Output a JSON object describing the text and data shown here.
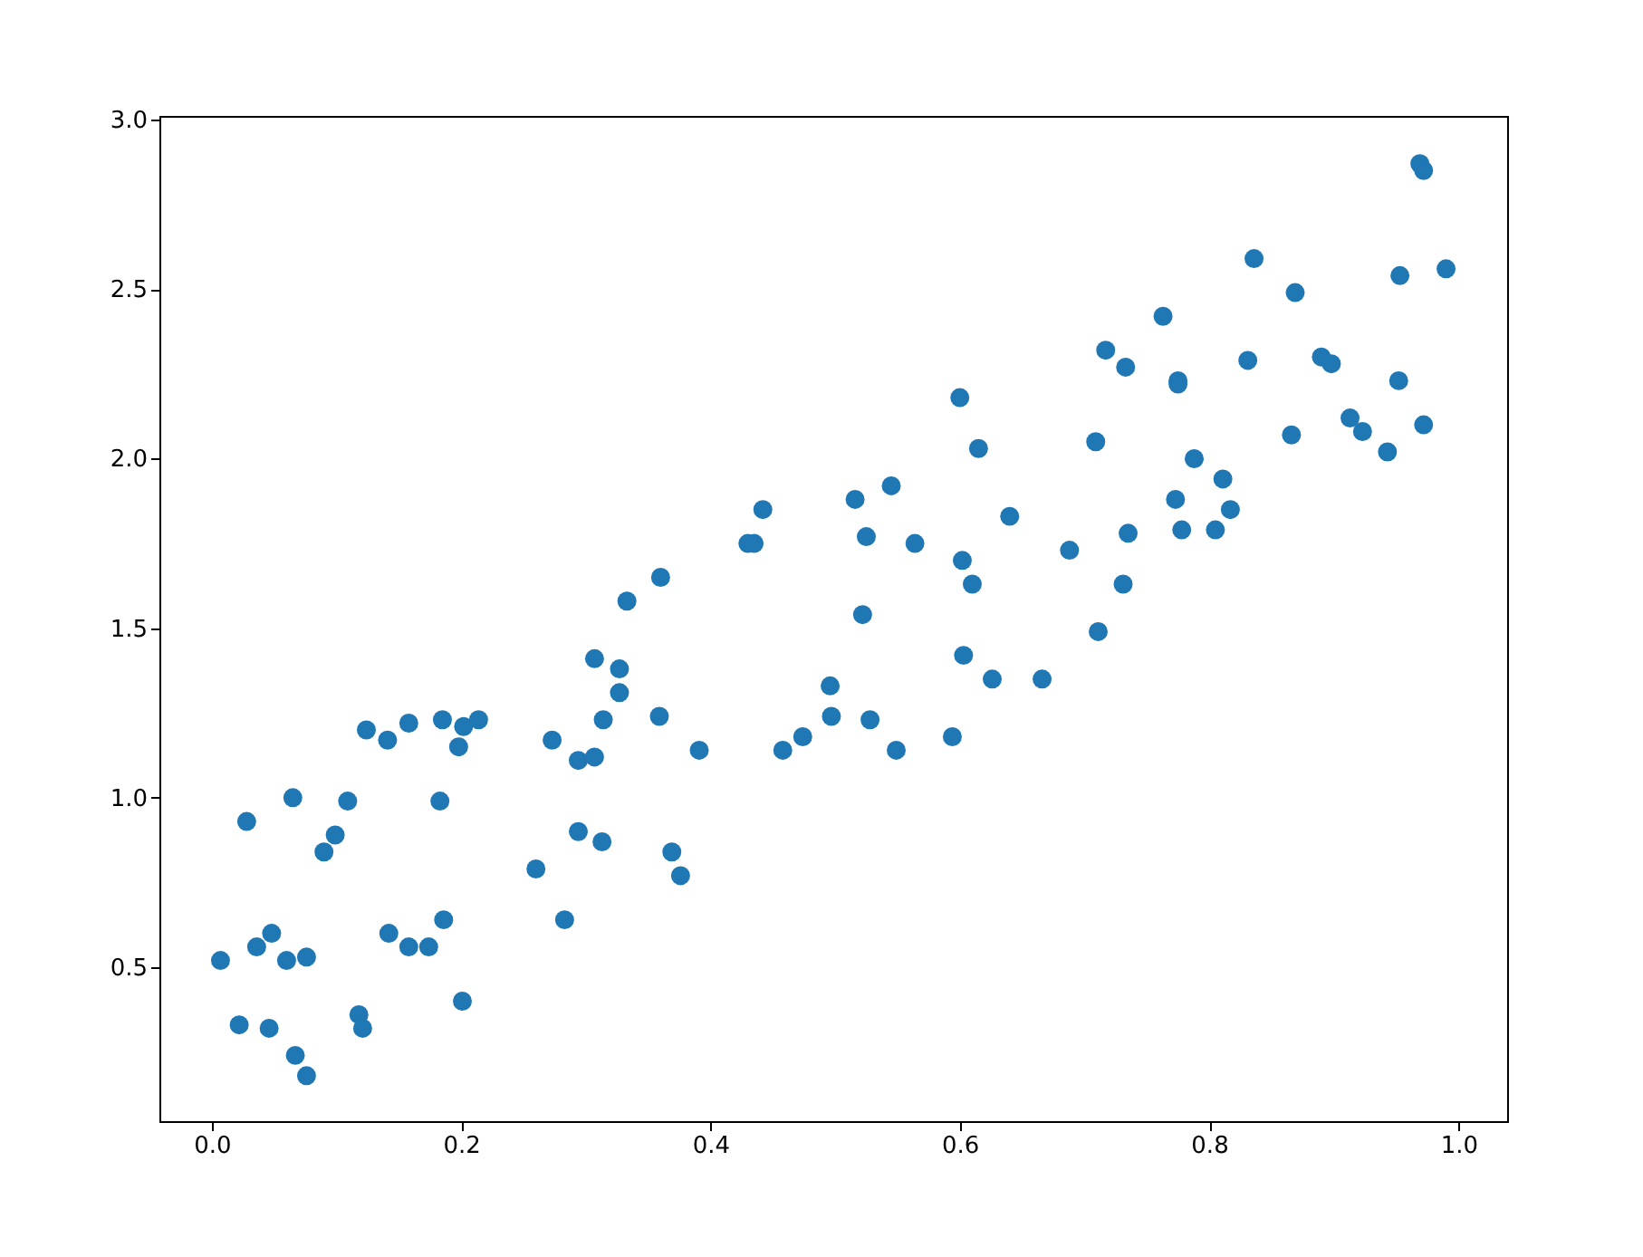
{
  "chart_data": {
    "type": "scatter",
    "color": "#1f77b4",
    "marker": "circle",
    "grid": false,
    "xlim": [
      -0.042,
      1.039
    ],
    "ylim": [
      0.046,
      3.011
    ],
    "xticks": [
      {
        "value": 0,
        "label": "0.0"
      },
      {
        "value": 0.2,
        "label": "0.2"
      },
      {
        "value": 0.4,
        "label": "0.4"
      },
      {
        "value": 0.6,
        "label": "0.6"
      },
      {
        "value": 0.8,
        "label": "0.8"
      },
      {
        "value": 1,
        "label": "1.0"
      }
    ],
    "yticks": [
      0.5,
      {
        "value": 1,
        "label": "1.0"
      },
      1.5,
      {
        "value": 2,
        "label": "2.0"
      },
      2.5,
      {
        "value": 3,
        "label": "3.0"
      }
    ],
    "x": [
      0.007,
      0.022,
      0.028,
      0.036,
      0.048,
      0.046,
      0.06,
      0.065,
      0.067,
      0.076,
      0.076,
      0.09,
      0.099,
      0.109,
      0.118,
      0.121,
      0.124,
      0.141,
      0.142,
      0.158,
      0.158,
      0.174,
      0.183,
      0.185,
      0.186,
      0.198,
      0.202,
      0.201,
      0.214,
      0.26,
      0.273,
      0.283,
      0.294,
      0.294,
      0.307,
      0.307,
      0.313,
      0.314,
      0.327,
      0.327,
      0.333,
      0.359,
      0.36,
      0.369,
      0.376,
      0.391,
      0.43,
      0.435,
      0.442,
      0.458,
      0.474,
      0.496,
      0.497,
      0.516,
      0.522,
      0.525,
      0.528,
      0.545,
      0.549,
      0.564,
      0.594,
      0.6,
      0.602,
      0.603,
      0.61,
      0.615,
      0.626,
      0.64,
      0.666,
      0.688,
      0.709,
      0.711,
      0.717,
      0.731,
      0.733,
      0.735,
      0.763,
      0.773,
      0.775,
      0.775,
      0.778,
      0.788,
      0.805,
      0.811,
      0.817,
      0.831,
      0.836,
      0.866,
      0.869,
      0.89,
      0.898,
      0.913,
      0.923,
      0.943,
      0.952,
      0.953,
      0.969,
      0.972,
      0.972,
      0.99
    ],
    "values": [
      0.52,
      0.33,
      0.93,
      0.56,
      0.6,
      0.32,
      0.52,
      1.0,
      0.24,
      0.53,
      0.18,
      0.84,
      0.89,
      0.99,
      0.36,
      0.32,
      1.2,
      1.17,
      0.6,
      1.22,
      0.56,
      0.56,
      0.99,
      1.23,
      0.64,
      1.15,
      1.21,
      0.4,
      1.23,
      0.79,
      1.17,
      0.64,
      1.11,
      0.9,
      1.12,
      1.41,
      0.87,
      1.23,
      1.38,
      1.31,
      1.58,
      1.24,
      1.65,
      0.84,
      0.77,
      1.14,
      1.75,
      1.75,
      1.85,
      1.14,
      1.18,
      1.33,
      1.24,
      1.88,
      1.54,
      1.77,
      1.23,
      1.92,
      1.14,
      1.75,
      1.18,
      2.18,
      1.7,
      1.42,
      1.63,
      2.03,
      1.35,
      1.83,
      1.35,
      1.73,
      2.05,
      1.49,
      2.32,
      1.63,
      2.27,
      1.78,
      2.42,
      1.88,
      2.23,
      2.22,
      1.79,
      2.0,
      1.79,
      1.94,
      1.85,
      2.29,
      2.59,
      2.07,
      2.49,
      2.3,
      2.28,
      2.12,
      2.08,
      2.02,
      2.23,
      2.54,
      2.87,
      2.85,
      2.1,
      2.56
    ]
  }
}
